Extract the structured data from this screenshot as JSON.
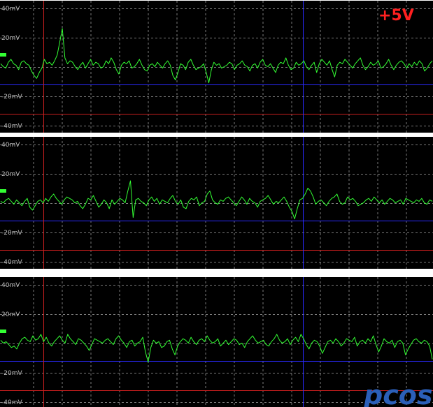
{
  "rail_label": "+5V",
  "watermark": "pcosk",
  "colors": {
    "background": "#000000",
    "separator": "#ffffff",
    "trace": "#33ff33",
    "grid": "#7a7a7a",
    "cursor_red": "#c81e1e",
    "cursor_blue": "#2a2aff",
    "label": "#ff2020"
  },
  "chart_data": [
    {
      "type": "line",
      "panel": 1,
      "ylabel_unit": "mV",
      "tick_labels": [
        "40mV",
        "20mV",
        "-20mV",
        "-40mV"
      ],
      "tick_values": [
        40,
        20,
        -20,
        -40
      ],
      "ylim": [
        -45,
        45
      ],
      "ground_marker_mV": 8,
      "h_cursors_mV": {
        "blue": -12,
        "red": -32
      },
      "v_cursors_frac": {
        "red": 0.1,
        "blue": 0.7
      },
      "grid": true,
      "series": [
        {
          "values": [
            2,
            0,
            -1,
            3,
            5,
            2,
            1,
            -2,
            3,
            4,
            2,
            1,
            -3,
            -6,
            -8,
            -4,
            -1,
            5,
            2,
            3,
            1,
            4,
            8,
            17,
            26,
            6,
            2,
            4,
            3,
            0,
            -2,
            1,
            3,
            -1,
            2,
            5,
            1,
            3,
            2,
            -1,
            0,
            4,
            2,
            6,
            3,
            -2,
            -5,
            1,
            3,
            2,
            4,
            -1,
            0,
            2,
            5,
            1,
            -2,
            -3,
            1,
            2,
            0,
            3,
            1,
            -1,
            2,
            4,
            1,
            -6,
            -9,
            -4,
            2,
            1,
            -2,
            3,
            5,
            1,
            -2,
            -1,
            0,
            2,
            -4,
            -11,
            -2,
            3,
            1,
            2,
            -1,
            0,
            1,
            3,
            2,
            -2,
            1,
            2,
            4,
            1,
            0,
            -3,
            1,
            2,
            -1,
            3,
            5,
            1,
            0,
            2,
            -1,
            -4,
            1,
            3,
            2,
            6,
            1,
            -2,
            -1,
            3,
            1,
            2,
            4,
            0,
            -2,
            1,
            3,
            -4,
            2,
            5,
            3,
            1,
            4,
            -2,
            -7,
            1,
            3,
            2,
            5,
            3,
            1,
            -1,
            2,
            4,
            6,
            1,
            -2,
            0,
            3,
            1,
            2,
            4,
            -1,
            0,
            2,
            5,
            1,
            -2,
            1,
            3,
            4,
            2,
            -1,
            2,
            0,
            3,
            1,
            4,
            2,
            -3,
            -1,
            2,
            4
          ]
        }
      ]
    },
    {
      "type": "line",
      "panel": 2,
      "ylabel_unit": "mV",
      "tick_labels": [
        "40mV",
        "20mV",
        "-20mV",
        "-40mV"
      ],
      "tick_values": [
        40,
        20,
        -20,
        -40
      ],
      "ylim": [
        -45,
        45
      ],
      "ground_marker_mV": 8,
      "h_cursors_mV": {
        "blue": -12,
        "red": -32
      },
      "v_cursors_frac": {
        "red": 0.1,
        "blue": 0.7
      },
      "grid": true,
      "series": [
        {
          "values": [
            1,
            0,
            2,
            3,
            1,
            -1,
            2,
            0,
            -2,
            1,
            3,
            -3,
            -5,
            -2,
            1,
            2,
            0,
            3,
            1,
            4,
            6,
            3,
            1,
            -1,
            2,
            4,
            3,
            2,
            0,
            1,
            -2,
            -4,
            -1,
            3,
            2,
            5,
            1,
            -3,
            -1,
            2,
            0,
            -4,
            2,
            -1,
            1,
            3,
            2,
            0,
            8,
            15,
            -10,
            2,
            3,
            1,
            0,
            -2,
            2,
            4,
            1,
            3,
            -1,
            2,
            1,
            0,
            3,
            5,
            1,
            -1,
            2,
            -3,
            -4,
            1,
            3,
            2,
            4,
            -2,
            0,
            1,
            6,
            8,
            2,
            0,
            -1,
            2,
            1,
            3,
            4,
            2,
            0,
            -2,
            1,
            4,
            2,
            -1,
            3,
            1,
            0,
            -3,
            1,
            2,
            3,
            5,
            2,
            -1,
            1,
            0,
            2,
            4,
            1,
            -3,
            -6,
            -11,
            -4,
            2,
            3,
            6,
            10,
            8,
            4,
            -1,
            1,
            2,
            0,
            -2,
            1,
            3,
            4,
            6,
            1,
            -1,
            0,
            4,
            2,
            3,
            1,
            -2,
            -1,
            0,
            2,
            3,
            1,
            4,
            2,
            0,
            2,
            -1,
            1,
            3,
            2,
            0,
            1,
            2,
            -1,
            3,
            2,
            1,
            0,
            2,
            1,
            3,
            0,
            -1,
            2,
            1
          ]
        }
      ]
    },
    {
      "type": "line",
      "panel": 3,
      "ylabel_unit": "mV",
      "tick_labels": [
        "40mV",
        "20mV",
        "-20mV",
        "-40mV"
      ],
      "tick_values": [
        40,
        20,
        -20,
        -40
      ],
      "ylim": [
        -45,
        45
      ],
      "ground_marker_mV": 8,
      "h_cursors_mV": {
        "blue": -12,
        "red": -32
      },
      "v_cursors_frac": {
        "red": 0.1,
        "blue": 0.7
      },
      "grid": true,
      "series": [
        {
          "values": [
            2,
            0,
            1,
            -1,
            -3,
            -2,
            -4,
            0,
            3,
            4,
            2,
            1,
            5,
            2,
            3,
            6,
            1,
            4,
            0,
            -2,
            1,
            3,
            5,
            2,
            0,
            6,
            3,
            1,
            -1,
            3,
            2,
            0,
            -2,
            -5,
            -1,
            3,
            2,
            1,
            0,
            2,
            3,
            1,
            -1,
            3,
            5,
            2,
            0,
            -3,
            1,
            2,
            -2,
            0,
            1,
            4,
            -6,
            -13,
            -3,
            2,
            0,
            1,
            -3,
            -2,
            1,
            2,
            -4,
            -8,
            -2,
            1,
            3,
            2,
            0,
            4,
            1,
            -1,
            2,
            3,
            1,
            5,
            2,
            0,
            1,
            3,
            -2,
            0,
            2,
            -1,
            1,
            3,
            2,
            -1,
            0,
            -3,
            1,
            3,
            5,
            2,
            0,
            1,
            2,
            -1,
            -2,
            1,
            3,
            6,
            2,
            0,
            1,
            3,
            -1,
            2,
            4,
            1,
            6,
            3,
            -1,
            -4,
            0,
            2,
            1,
            -2,
            -7,
            -3,
            1,
            2,
            0,
            3,
            1,
            -2,
            0,
            3,
            2,
            1,
            4,
            -2,
            1,
            2,
            0,
            3,
            1,
            5,
            -1,
            -6,
            -2,
            3,
            1,
            0,
            2,
            -3,
            1,
            2,
            0,
            -8,
            -4,
            -1,
            2,
            3,
            1,
            0,
            2,
            1,
            -2,
            -11
          ]
        }
      ]
    }
  ]
}
